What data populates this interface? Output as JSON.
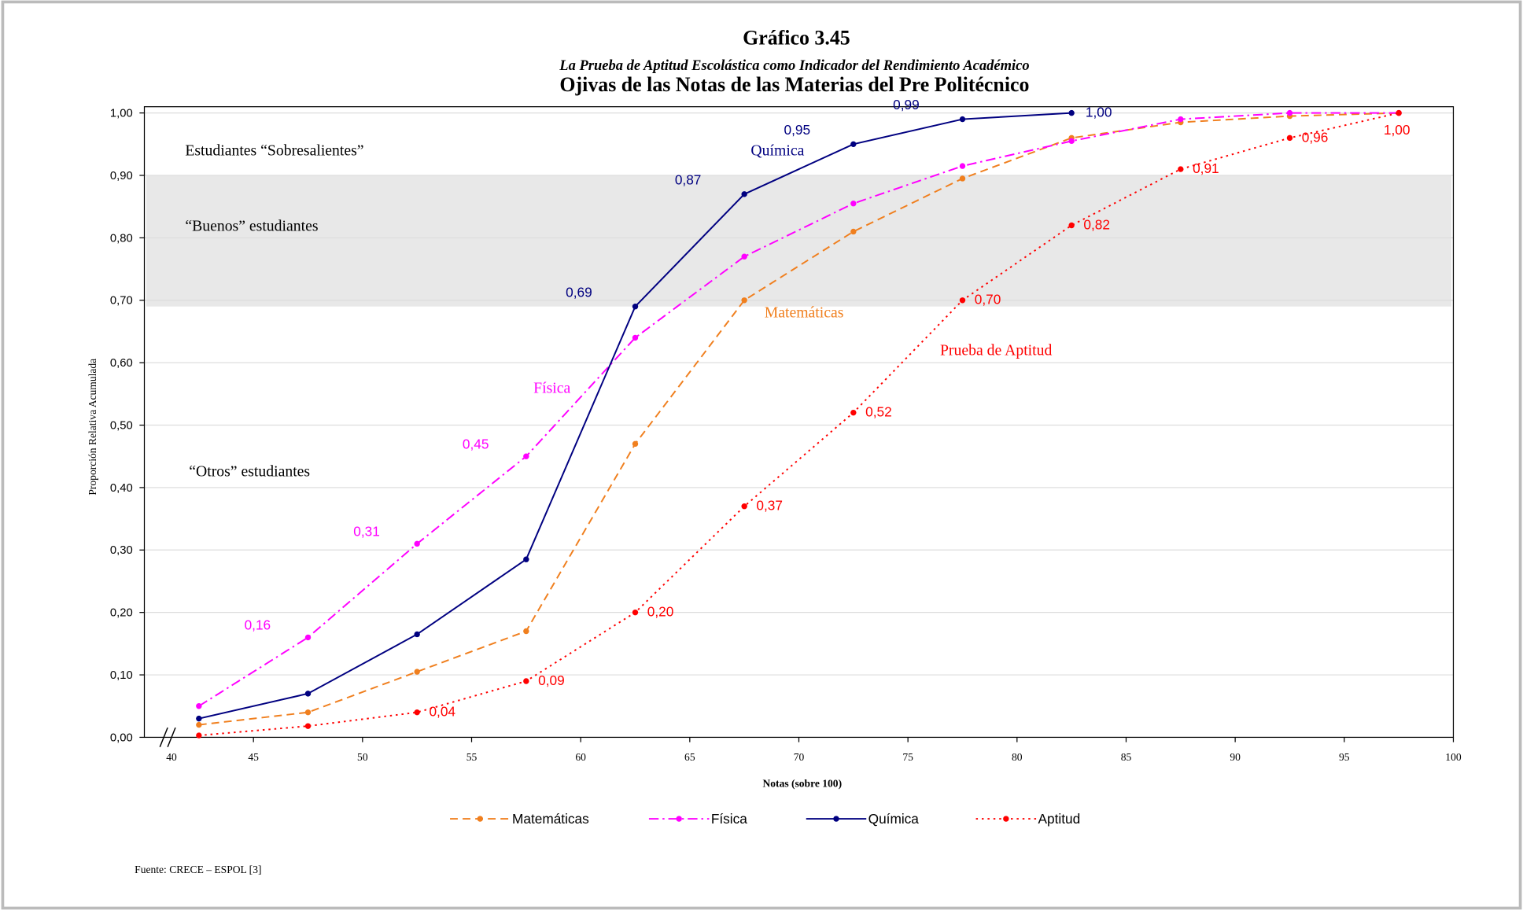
{
  "chart_data": {
    "type": "line",
    "title": "Gráfico 3.45",
    "subtitle": "La Prueba de Aptitud Escolástica como Indicador del Rendimiento Académico",
    "title2": "Ojivas de las Notas de las Materias del Pre Politécnico",
    "x_label": "Notas (sobre 100)",
    "y_label": "Proporción Relativa Acumulada",
    "x": [
      42.5,
      47.5,
      52.5,
      57.5,
      62.5,
      67.5,
      72.5,
      77.5,
      82.5,
      87.5,
      92.5,
      97.5
    ],
    "series": [
      {
        "name": "Matemáticas",
        "color": "#f07f1e",
        "dash": "8,5",
        "values": [
          0.02,
          0.04,
          0.105,
          0.17,
          0.47,
          0.7,
          0.81,
          0.895,
          0.96,
          0.985,
          0.995,
          1.0
        ],
        "value_labels": [
          null,
          null,
          null,
          null,
          null,
          null,
          null,
          null,
          null,
          null,
          null,
          null
        ]
      },
      {
        "name": "Física",
        "color": "#ff00ff",
        "dash": "10,4,2,4",
        "values": [
          0.05,
          0.16,
          0.31,
          0.45,
          0.64,
          0.77,
          0.855,
          0.915,
          0.955,
          0.99,
          1.0,
          1.0
        ],
        "value_labels": [
          null,
          "0,16",
          "0,31",
          "0,45",
          null,
          null,
          null,
          null,
          null,
          null,
          null,
          null
        ]
      },
      {
        "name": "Química",
        "color": "#000080",
        "dash": "none",
        "values": [
          0.03,
          0.07,
          0.165,
          0.285,
          0.69,
          0.87,
          0.95,
          0.99,
          1.0,
          null,
          null,
          null
        ],
        "value_labels": [
          null,
          null,
          null,
          null,
          "0,69",
          "0,87",
          "0,95",
          "0,99",
          "1,00",
          null,
          null,
          null
        ]
      },
      {
        "name": "Aptitud",
        "color": "#ff0000",
        "dash": "2,4",
        "values": [
          0.003,
          0.018,
          0.04,
          0.09,
          0.2,
          0.37,
          0.52,
          0.7,
          0.82,
          0.91,
          0.96,
          1.0
        ],
        "value_labels": [
          null,
          null,
          "0,04",
          "0,09",
          "0,20",
          "0,37",
          "0,52",
          "0,70",
          "0,82",
          "0,91",
          "0,96",
          "1,00"
        ]
      }
    ],
    "xlim": [
      40,
      100
    ],
    "xticks": [
      40,
      45,
      50,
      55,
      60,
      65,
      70,
      75,
      80,
      85,
      90,
      95,
      100
    ],
    "ylim": [
      0,
      1.01
    ],
    "yticks": [
      {
        "value": 0,
        "label": "0,00"
      },
      {
        "value": 0.1,
        "label": "0,10"
      },
      {
        "value": 0.2,
        "label": "0,20"
      },
      {
        "value": 0.3,
        "label": "0,30"
      },
      {
        "value": 0.4,
        "label": "0,40"
      },
      {
        "value": 0.5,
        "label": "0,50"
      },
      {
        "value": 0.6,
        "label": "0,60"
      },
      {
        "value": 0.7,
        "label": "0,70"
      },
      {
        "value": 0.8,
        "label": "0,80"
      },
      {
        "value": 0.9,
        "label": "0,90"
      },
      {
        "value": 1.0,
        "label": "1,00"
      }
    ],
    "grid": true,
    "band": [
      0.69,
      0.9
    ],
    "band_color": "#e8e8e8",
    "annotations": [
      "Estudiantes “Sobresalientes”",
      "“Buenos” estudiantes",
      "“Otros” estudiantes",
      "Química",
      "Matemáticas",
      "Prueba de Aptitud",
      "Física"
    ],
    "legend": "bottom",
    "source": "Fuente: CRECE – ESPOL [3]"
  }
}
